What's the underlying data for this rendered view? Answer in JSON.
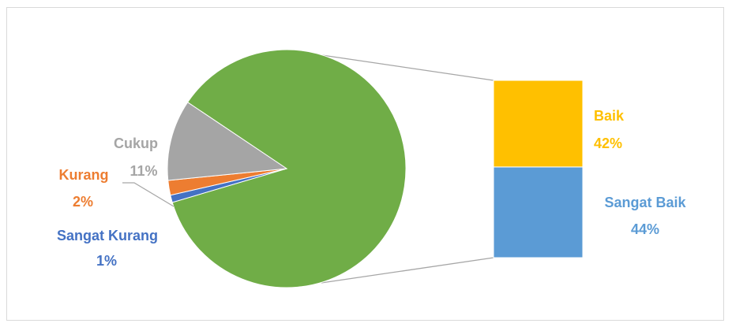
{
  "chart_data": {
    "type": "bar-of-pie",
    "title": "",
    "series": [
      {
        "name": "",
        "slices": [
          {
            "label": "Sangat Baik",
            "value": 44,
            "display": "44%",
            "color": "#5b9bd5",
            "in_secondary": true
          },
          {
            "label": "Baik",
            "value": 42,
            "display": "42%",
            "color": "#ffc000",
            "in_secondary": true
          },
          {
            "label": "Cukup",
            "value": 11,
            "display": "11%",
            "color": "#a5a5a5",
            "in_secondary": false
          },
          {
            "label": "Kurang",
            "value": 2,
            "display": "2%",
            "color": "#ed7d31",
            "in_secondary": false
          },
          {
            "label": "Sangat Kurang",
            "value": 1,
            "display": "1%",
            "color": "#4472c4",
            "in_secondary": false
          }
        ]
      }
    ],
    "other_color": "#70ad47",
    "legend": "none"
  }
}
